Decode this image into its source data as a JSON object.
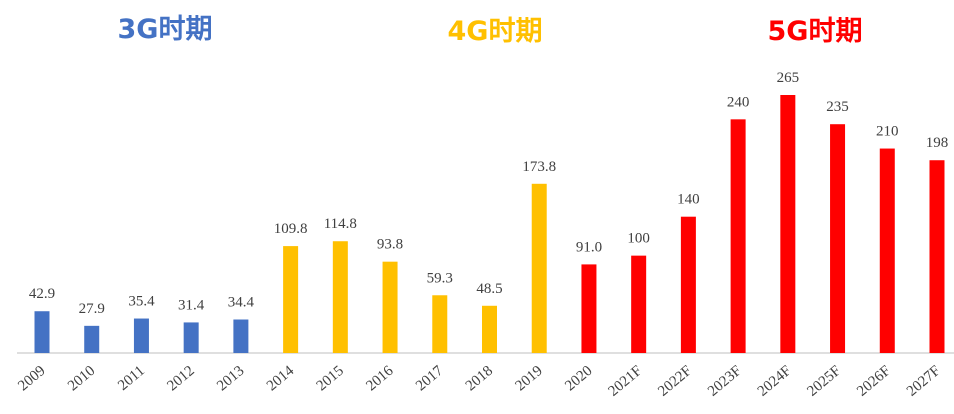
{
  "chart_data": {
    "type": "bar",
    "annotations": [
      {
        "text": "3G时期",
        "color": "#4472c4"
      },
      {
        "text": "4G时期",
        "color": "#ffc000"
      },
      {
        "text": "5G时期",
        "color": "#ff0000"
      }
    ],
    "categories": [
      "2009",
      "2010",
      "2011",
      "2012",
      "2013",
      "2014",
      "2015",
      "2016",
      "2017",
      "2018",
      "2019",
      "2020",
      "2021F",
      "2022F",
      "2023F",
      "2024F",
      "2025F",
      "2026F",
      "2027F"
    ],
    "values": [
      42.9,
      27.9,
      35.4,
      31.4,
      34.4,
      109.8,
      114.8,
      93.8,
      59.3,
      48.5,
      173.8,
      91.0,
      100,
      140,
      240,
      265,
      235,
      210,
      198
    ],
    "value_labels": [
      "42.9",
      "27.9",
      "35.4",
      "31.4",
      "34.4",
      "109.8",
      "114.8",
      "93.8",
      "59.3",
      "48.5",
      "173.8",
      "91.0",
      "100",
      "140",
      "240",
      "265",
      "235",
      "210",
      "198"
    ],
    "colors": [
      "#4472c4",
      "#4472c4",
      "#4472c4",
      "#4472c4",
      "#4472c4",
      "#ffc000",
      "#ffc000",
      "#ffc000",
      "#ffc000",
      "#ffc000",
      "#ffc000",
      "#ff0000",
      "#ff0000",
      "#ff0000",
      "#ff0000",
      "#ff0000",
      "#ff0000",
      "#ff0000",
      "#ff0000"
    ]
  }
}
